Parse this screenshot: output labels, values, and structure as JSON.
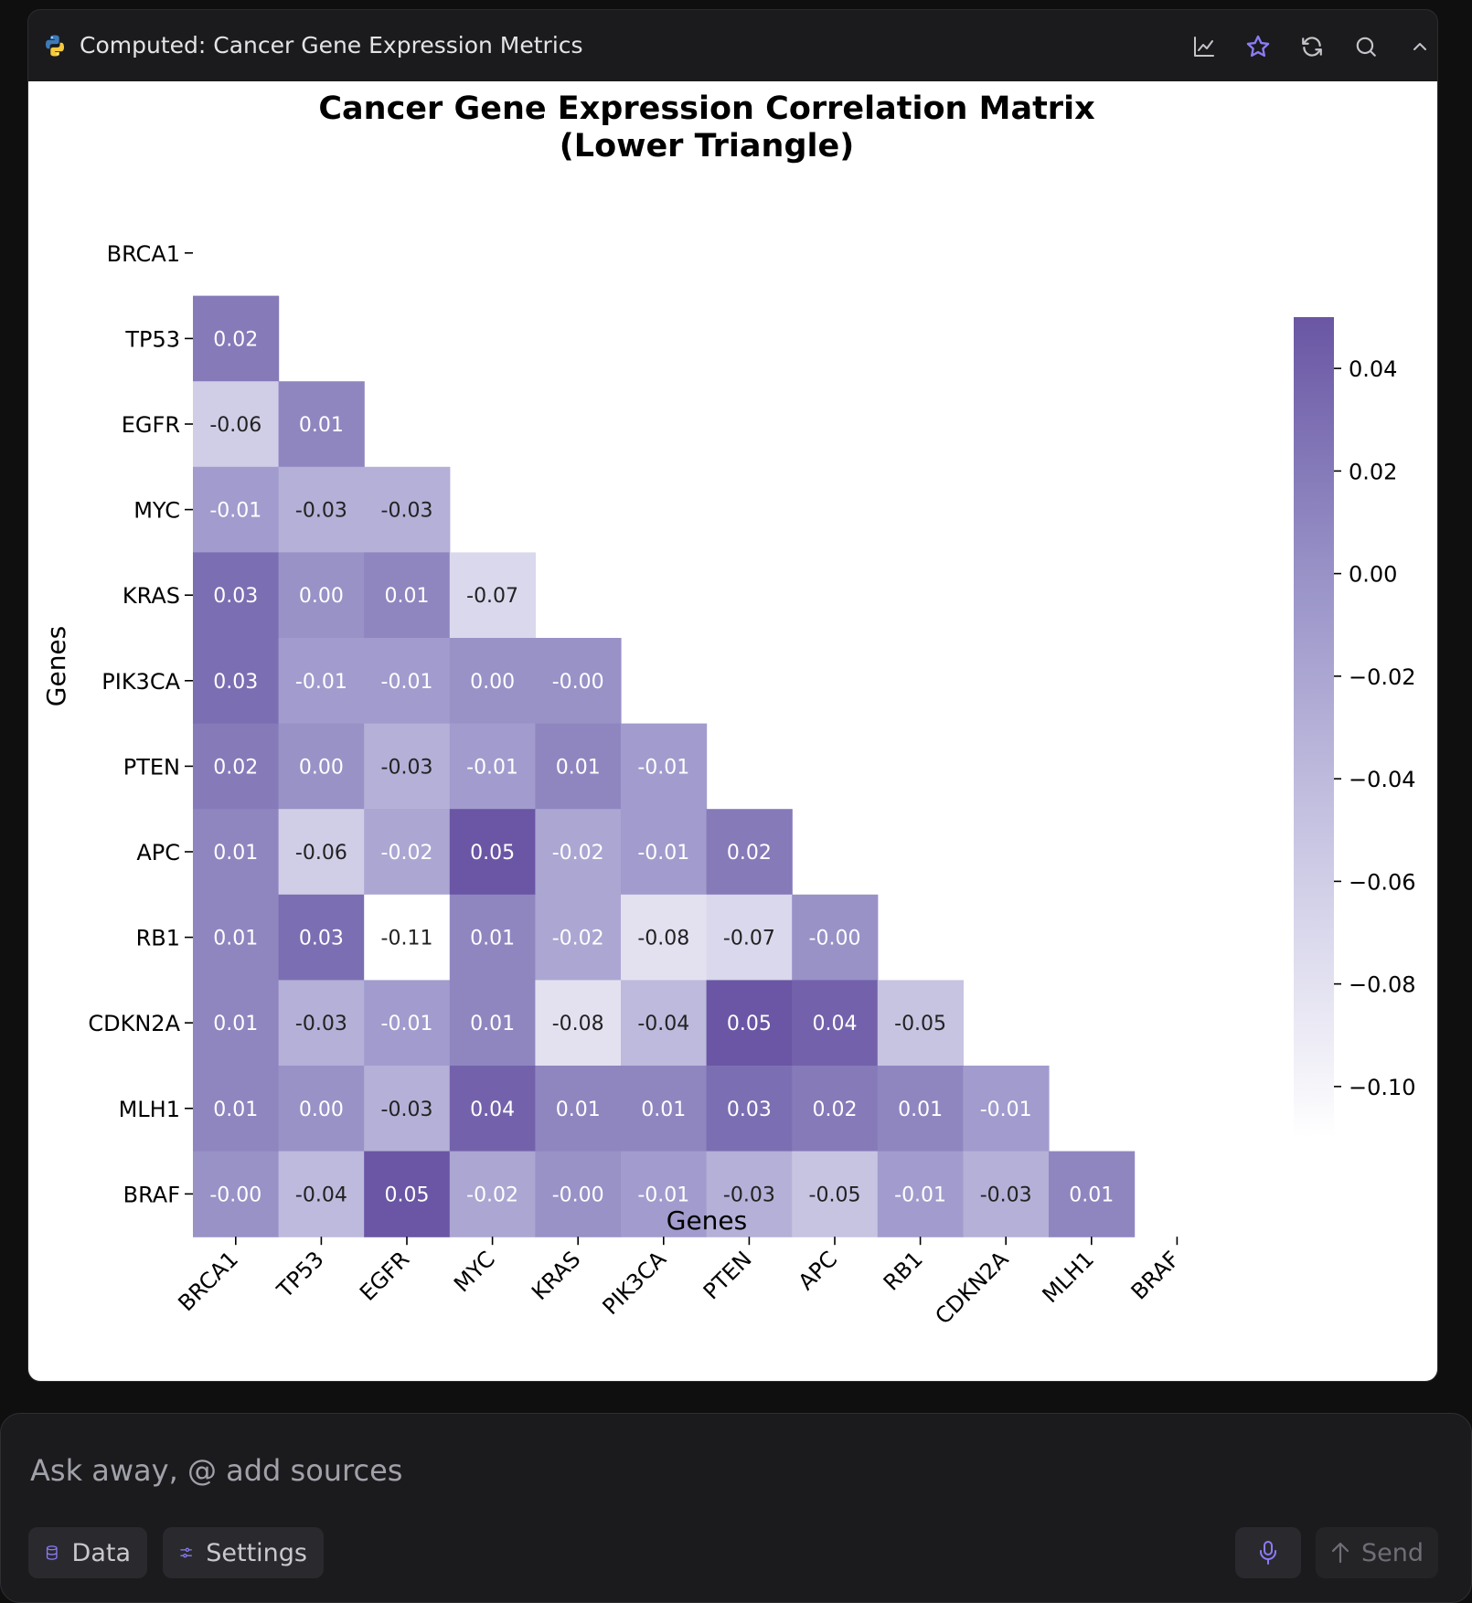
{
  "panel": {
    "title": "Computed: Cancer Gene Expression Metrics"
  },
  "header_icons": [
    "chart-line-icon",
    "star-icon",
    "refresh-icon",
    "search-icon",
    "chevron-up-icon"
  ],
  "colors": {
    "accent": "#8b7cf6",
    "cmap_low": "#ffffff",
    "cmap_high": "#6a56a4"
  },
  "chart_data": {
    "type": "heatmap",
    "title": "Cancer Gene Expression Correlation Matrix",
    "subtitle": "(Lower Triangle)",
    "xlabel": "Genes",
    "ylabel": "Genes",
    "genes": [
      "BRCA1",
      "TP53",
      "EGFR",
      "MYC",
      "KRAS",
      "PIK3CA",
      "PTEN",
      "APC",
      "RB1",
      "CDKN2A",
      "MLH1",
      "BRAF"
    ],
    "matrix": [
      [],
      [
        "0.02"
      ],
      [
        "-0.06",
        "0.01"
      ],
      [
        "-0.01",
        "-0.03",
        "-0.03"
      ],
      [
        "0.03",
        "0.00",
        "0.01",
        "-0.07"
      ],
      [
        "0.03",
        "-0.01",
        "-0.01",
        "0.00",
        "-0.00"
      ],
      [
        "0.02",
        "0.00",
        "-0.03",
        "-0.01",
        "0.01",
        "-0.01"
      ],
      [
        "0.01",
        "-0.06",
        "-0.02",
        "0.05",
        "-0.02",
        "-0.01",
        "0.02"
      ],
      [
        "0.01",
        "0.03",
        "-0.11",
        "0.01",
        "-0.02",
        "-0.08",
        "-0.07",
        "-0.00"
      ],
      [
        "0.01",
        "-0.03",
        "-0.01",
        "0.01",
        "-0.08",
        "-0.04",
        "0.05",
        "0.04",
        "-0.05"
      ],
      [
        "0.01",
        "0.00",
        "-0.03",
        "0.04",
        "0.01",
        "0.01",
        "0.03",
        "0.02",
        "0.01",
        "-0.01"
      ],
      [
        "-0.00",
        "-0.04",
        "0.05",
        "-0.02",
        "-0.00",
        "-0.01",
        "-0.03",
        "-0.05",
        "-0.01",
        "-0.03",
        "0.01"
      ]
    ],
    "vmin": -0.11,
    "vmax": 0.05,
    "colorbar_ticks": [
      "0.04",
      "0.02",
      "0.00",
      "−0.02",
      "−0.04",
      "−0.06",
      "−0.08",
      "−0.10"
    ],
    "colorbar_tick_values": [
      0.04,
      0.02,
      0.0,
      -0.02,
      -0.04,
      -0.06,
      -0.08,
      -0.1
    ]
  },
  "composer": {
    "placeholder": "Ask away, @ add sources",
    "data_label": "Data",
    "settings_label": "Settings",
    "send_label": "Send"
  }
}
